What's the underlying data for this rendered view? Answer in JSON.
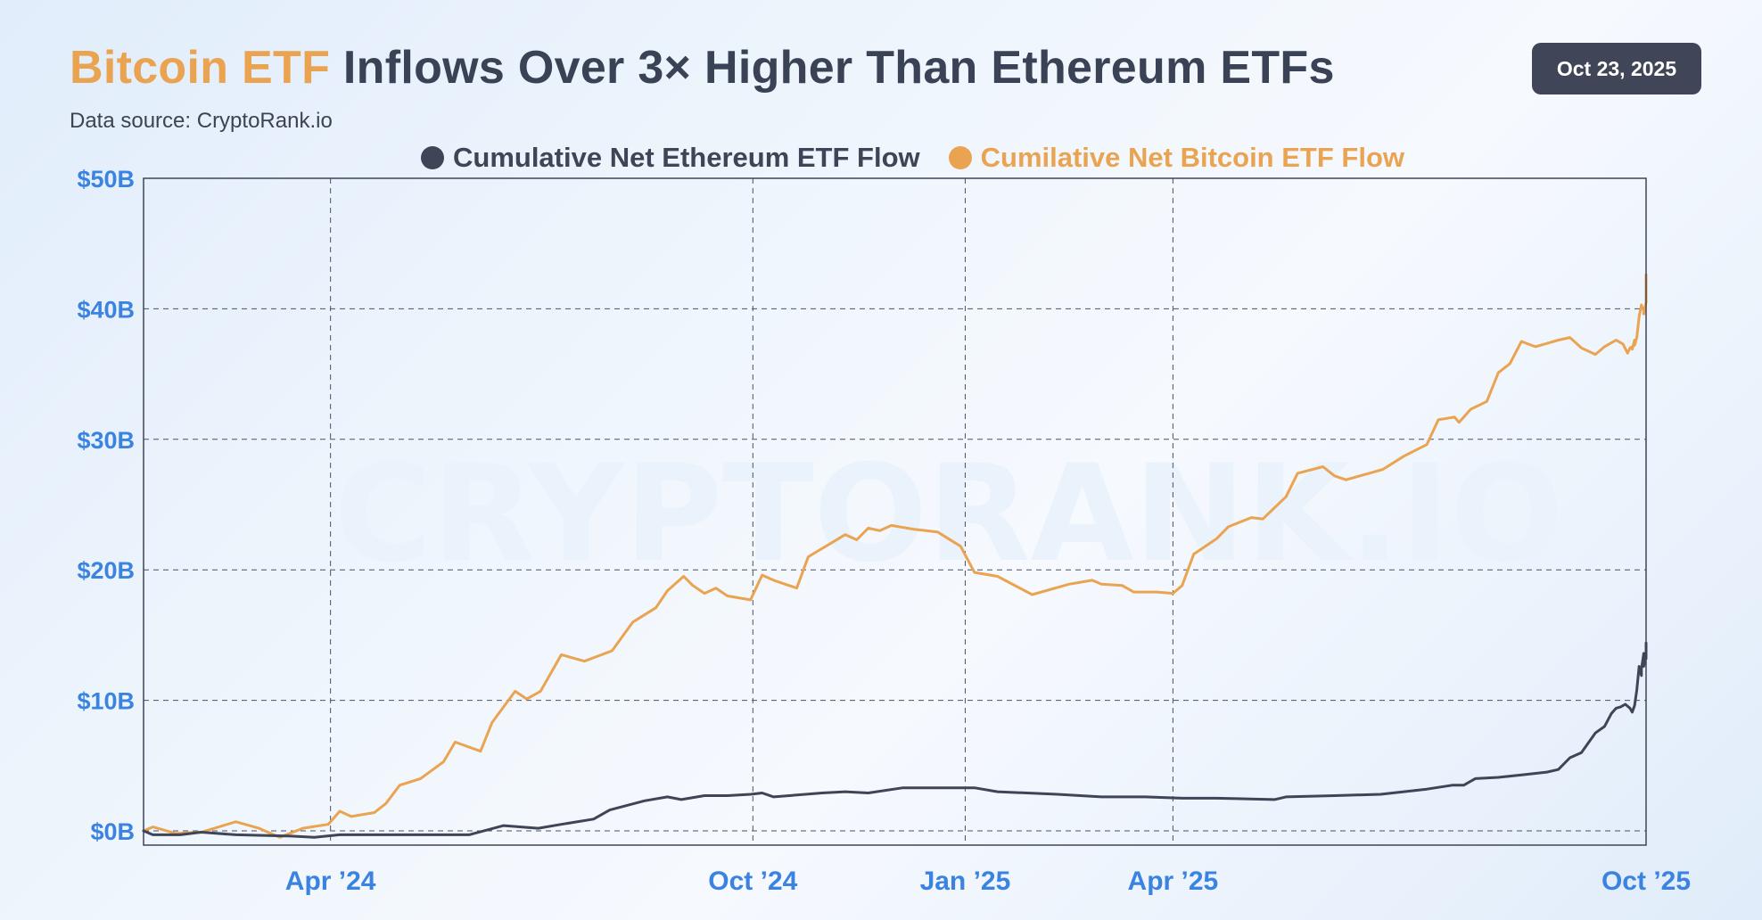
{
  "header": {
    "title_highlight": "Bitcoin ETF",
    "title_rest": " Inflows Over 3× Higher Than Ethereum ETFs",
    "source": "Data source: CryptoRank.io",
    "date": "Oct 23, 2025"
  },
  "watermark": "CRYPTORANK.IO",
  "colors": {
    "bitcoin": "#eaa451",
    "ethereum": "#3f4557",
    "axis_text": "#3a83e0",
    "title": "#3a4256"
  },
  "chart_data": {
    "type": "line",
    "title": "Bitcoin ETF Inflows Over 3× Higher Than Ethereum ETFs",
    "xlabel": "",
    "ylabel": "",
    "ylim": [
      -1,
      50
    ],
    "x_range": [
      "2024-01-11",
      "2025-10-23"
    ],
    "grid": true,
    "legend_position": "top-center",
    "y_ticks": [
      {
        "value": 0,
        "label": "$0B"
      },
      {
        "value": 10,
        "label": "$10B"
      },
      {
        "value": 20,
        "label": "$20B"
      },
      {
        "value": 30,
        "label": "$30B"
      },
      {
        "value": 40,
        "label": "$40B"
      },
      {
        "value": 50,
        "label": "$50B"
      }
    ],
    "x_ticks": [
      {
        "date": "2024-04-01",
        "label": "Apr ’24"
      },
      {
        "date": "2024-10-01",
        "label": "Oct ’24"
      },
      {
        "date": "2025-01-01",
        "label": "Jan ’25"
      },
      {
        "date": "2025-04-01",
        "label": "Apr ’25"
      },
      {
        "date": "2025-10-23",
        "label": "Oct ’25"
      }
    ],
    "series": [
      {
        "name": "Cumulative Net Ethereum ETF Flow",
        "color": "#3f4557",
        "points": [
          [
            "2024-01-11",
            0.0
          ],
          [
            "2024-01-15",
            -0.3
          ],
          [
            "2024-01-27",
            -0.3
          ],
          [
            "2024-02-05",
            -0.1
          ],
          [
            "2024-02-20",
            -0.3
          ],
          [
            "2024-03-15",
            -0.4
          ],
          [
            "2024-03-25",
            -0.5
          ],
          [
            "2024-04-05",
            -0.3
          ],
          [
            "2024-05-01",
            -0.3
          ],
          [
            "2024-05-20",
            -0.3
          ],
          [
            "2024-05-31",
            -0.3
          ],
          [
            "2024-06-15",
            0.4
          ],
          [
            "2024-06-30",
            0.2
          ],
          [
            "2024-07-10",
            0.5
          ],
          [
            "2024-07-24",
            0.9
          ],
          [
            "2024-07-31",
            1.6
          ],
          [
            "2024-08-15",
            2.3
          ],
          [
            "2024-08-25",
            2.6
          ],
          [
            "2024-08-31",
            2.4
          ],
          [
            "2024-09-10",
            2.7
          ],
          [
            "2024-09-20",
            2.7
          ],
          [
            "2024-09-30",
            2.8
          ],
          [
            "2024-10-05",
            2.9
          ],
          [
            "2024-10-10",
            2.6
          ],
          [
            "2024-10-31",
            2.9
          ],
          [
            "2024-11-10",
            3.0
          ],
          [
            "2024-11-20",
            2.9
          ],
          [
            "2024-12-05",
            3.3
          ],
          [
            "2024-12-20",
            3.3
          ],
          [
            "2025-01-05",
            3.3
          ],
          [
            "2025-01-15",
            3.0
          ],
          [
            "2025-02-10",
            2.8
          ],
          [
            "2025-03-01",
            2.6
          ],
          [
            "2025-03-20",
            2.6
          ],
          [
            "2025-04-05",
            2.5
          ],
          [
            "2025-04-20",
            2.5
          ],
          [
            "2025-05-15",
            2.4
          ],
          [
            "2025-05-20",
            2.6
          ],
          [
            "2025-06-10",
            2.7
          ],
          [
            "2025-06-30",
            2.8
          ],
          [
            "2025-07-10",
            3.0
          ],
          [
            "2025-07-20",
            3.2
          ],
          [
            "2025-07-31",
            3.5
          ],
          [
            "2025-08-05",
            3.5
          ],
          [
            "2025-08-10",
            4.0
          ],
          [
            "2025-08-20",
            4.1
          ],
          [
            "2025-08-31",
            4.3
          ],
          [
            "2025-09-10",
            4.5
          ],
          [
            "2025-09-15",
            4.7
          ],
          [
            "2025-09-20",
            5.6
          ],
          [
            "2025-09-25",
            6.0
          ],
          [
            "2025-10-01",
            7.5
          ],
          [
            "2025-10-05",
            8.0
          ],
          [
            "2025-10-08",
            9.0
          ],
          [
            "2025-10-10",
            9.4
          ],
          [
            "2025-10-12",
            9.5
          ],
          [
            "2025-10-14",
            9.7
          ],
          [
            "2025-10-16",
            9.4
          ],
          [
            "2025-10-17",
            9.1
          ],
          [
            "2025-10-18",
            9.6
          ],
          [
            "2025-10-19",
            10.8
          ],
          [
            "2025-10-20",
            12.6
          ],
          [
            "2025-10-20",
            12.6
          ],
          [
            "2025-10-21",
            11.9
          ],
          [
            "2025-10-21",
            12.4
          ],
          [
            "2025-10-22",
            13.6
          ],
          [
            "2025-10-22",
            13.3
          ],
          [
            "2025-10-22",
            12.6
          ],
          [
            "2025-10-23",
            13.6
          ],
          [
            "2025-10-23",
            13.8
          ],
          [
            "2025-10-23",
            13.2
          ],
          [
            "2025-10-23",
            14.4
          ]
        ]
      },
      {
        "name": "Cumilative Net Bitcoin ETF Flow",
        "color": "#eaa451",
        "points": [
          [
            "2024-01-11",
            0.0
          ],
          [
            "2024-01-15",
            0.3
          ],
          [
            "2024-01-25",
            -0.2
          ],
          [
            "2024-02-05",
            -0.1
          ],
          [
            "2024-02-20",
            0.7
          ],
          [
            "2024-03-01",
            0.2
          ],
          [
            "2024-03-10",
            -0.5
          ],
          [
            "2024-03-20",
            0.2
          ],
          [
            "2024-03-31",
            0.5
          ],
          [
            "2024-04-05",
            1.5
          ],
          [
            "2024-04-10",
            1.1
          ],
          [
            "2024-04-20",
            1.4
          ],
          [
            "2024-04-25",
            2.1
          ],
          [
            "2024-05-01",
            3.5
          ],
          [
            "2024-05-10",
            4.0
          ],
          [
            "2024-05-20",
            5.3
          ],
          [
            "2024-05-25",
            6.8
          ],
          [
            "2024-06-05",
            6.1
          ],
          [
            "2024-06-10",
            8.3
          ],
          [
            "2024-06-20",
            10.7
          ],
          [
            "2024-06-25",
            10.1
          ],
          [
            "2024-07-01",
            10.7
          ],
          [
            "2024-07-10",
            13.5
          ],
          [
            "2024-07-20",
            13.0
          ],
          [
            "2024-08-01",
            13.8
          ],
          [
            "2024-08-10",
            16.0
          ],
          [
            "2024-08-20",
            17.1
          ],
          [
            "2024-08-25",
            18.4
          ],
          [
            "2024-09-01",
            19.5
          ],
          [
            "2024-09-05",
            18.8
          ],
          [
            "2024-09-10",
            18.2
          ],
          [
            "2024-09-15",
            18.6
          ],
          [
            "2024-09-20",
            18.0
          ],
          [
            "2024-09-30",
            17.7
          ],
          [
            "2024-10-05",
            19.6
          ],
          [
            "2024-10-10",
            19.2
          ],
          [
            "2024-10-20",
            18.6
          ],
          [
            "2024-10-25",
            21.0
          ],
          [
            "2024-11-10",
            22.7
          ],
          [
            "2024-11-15",
            22.3
          ],
          [
            "2024-11-20",
            23.2
          ],
          [
            "2024-11-25",
            23.0
          ],
          [
            "2024-11-30",
            23.4
          ],
          [
            "2024-12-10",
            23.1
          ],
          [
            "2024-12-20",
            22.9
          ],
          [
            "2024-12-30",
            21.8
          ],
          [
            "2025-01-05",
            19.8
          ],
          [
            "2025-01-15",
            19.5
          ],
          [
            "2025-01-30",
            18.1
          ],
          [
            "2025-02-15",
            18.9
          ],
          [
            "2025-02-25",
            19.2
          ],
          [
            "2025-03-01",
            18.9
          ],
          [
            "2025-03-10",
            18.8
          ],
          [
            "2025-03-15",
            18.3
          ],
          [
            "2025-03-25",
            18.3
          ],
          [
            "2025-04-01",
            18.2
          ],
          [
            "2025-04-05",
            18.8
          ],
          [
            "2025-04-10",
            21.2
          ],
          [
            "2025-04-20",
            22.4
          ],
          [
            "2025-04-25",
            23.3
          ],
          [
            "2025-05-05",
            24.0
          ],
          [
            "2025-05-10",
            23.9
          ],
          [
            "2025-05-20",
            25.6
          ],
          [
            "2025-05-25",
            27.4
          ],
          [
            "2025-06-05",
            27.9
          ],
          [
            "2025-06-10",
            27.2
          ],
          [
            "2025-06-15",
            26.9
          ],
          [
            "2025-06-25",
            27.4
          ],
          [
            "2025-07-01",
            27.7
          ],
          [
            "2025-07-10",
            28.7
          ],
          [
            "2025-07-20",
            29.6
          ],
          [
            "2025-07-25",
            31.5
          ],
          [
            "2025-08-01",
            31.7
          ],
          [
            "2025-08-03",
            31.3
          ],
          [
            "2025-08-08",
            32.3
          ],
          [
            "2025-08-15",
            32.9
          ],
          [
            "2025-08-20",
            35.1
          ],
          [
            "2025-08-25",
            35.8
          ],
          [
            "2025-08-30",
            37.5
          ],
          [
            "2025-09-05",
            37.1
          ],
          [
            "2025-09-15",
            37.6
          ],
          [
            "2025-09-20",
            37.8
          ],
          [
            "2025-09-25",
            37.0
          ],
          [
            "2025-10-01",
            36.5
          ],
          [
            "2025-10-05",
            37.1
          ],
          [
            "2025-10-10",
            37.6
          ],
          [
            "2025-10-13",
            37.3
          ],
          [
            "2025-10-15",
            36.6
          ],
          [
            "2025-10-16",
            37.0
          ],
          [
            "2025-10-17",
            37.1
          ],
          [
            "2025-10-17",
            36.9
          ],
          [
            "2025-10-18",
            37.6
          ],
          [
            "2025-10-18",
            37.2
          ],
          [
            "2025-10-19",
            37.8
          ],
          [
            "2025-10-20",
            39.4
          ],
          [
            "2025-10-21",
            40.3
          ],
          [
            "2025-10-21",
            40.0
          ],
          [
            "2025-10-22",
            40.1
          ],
          [
            "2025-10-22",
            39.6
          ],
          [
            "2025-10-23",
            40.5
          ],
          [
            "2025-10-23",
            42.6
          ]
        ]
      }
    ]
  }
}
